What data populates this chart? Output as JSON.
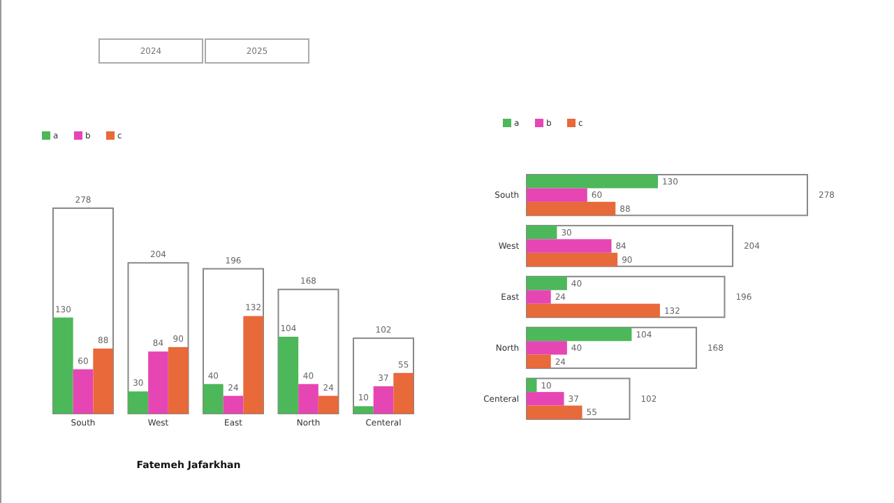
{
  "chart_data": [
    {
      "type": "bar",
      "categories": [
        "South",
        "West",
        "East",
        "North",
        "Centeral"
      ],
      "series": [
        {
          "color": "#ffffff",
          "values": [
            278,
            204,
            196,
            168,
            102
          ]
        },
        {
          "name": "a",
          "color": "#4cb85a",
          "values": [
            130,
            30,
            40,
            104,
            10
          ]
        },
        {
          "name": "b",
          "color": "#e645b4",
          "values": [
            60,
            84,
            24,
            40,
            37
          ]
        },
        {
          "name": "c",
          "color": "#e8693a",
          "values": [
            88,
            90,
            132,
            24,
            55
          ]
        }
      ],
      "data_labels": true,
      "legend": "top left",
      "annotations": [
        "2024",
        "2025",
        "Fatemeh Jafarkhan"
      ]
    },
    {
      "type": "bar",
      "orientation": "horizontal",
      "categories": [
        "South",
        "West",
        "East",
        "North",
        "Centeral"
      ],
      "series": [
        {
          "color": "#ffffff",
          "values": [
            278,
            204,
            196,
            168,
            102
          ]
        },
        {
          "name": "a",
          "color": "#4cb85a",
          "values": [
            130,
            30,
            40,
            104,
            10
          ]
        },
        {
          "name": "b",
          "color": "#e645b4",
          "values": [
            60,
            84,
            24,
            40,
            37
          ]
        },
        {
          "name": "c",
          "color": "#e8693a",
          "values": [
            88,
            90,
            132,
            24,
            55
          ]
        }
      ],
      "data_labels": true,
      "legend": "top left"
    }
  ]
}
